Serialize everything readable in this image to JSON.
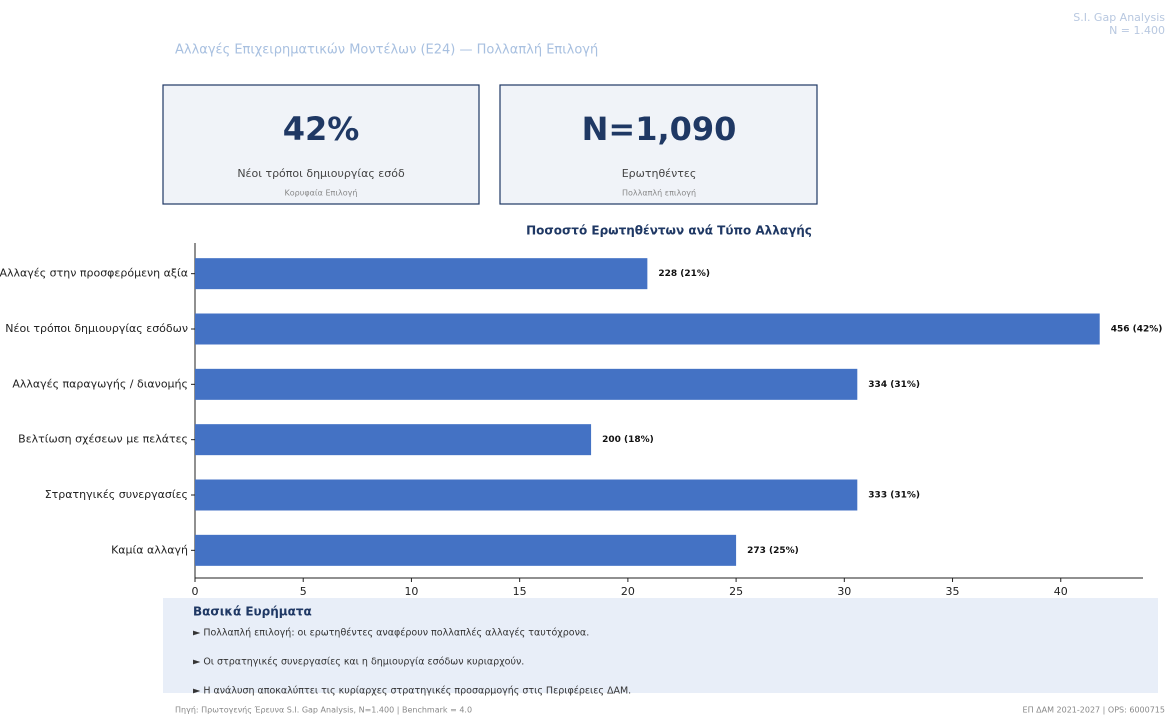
{
  "header": {
    "title": "Αλλαγές Επιχειρηματικών Μοντέλων (E24) — Πολλαπλή Επιλογή",
    "badge": [
      "S.I. Gap Analysis",
      "N = 1.400"
    ]
  },
  "kpis": [
    {
      "value": "42%",
      "label": "Νέοι τρόποι δημιουργίας εσόδ",
      "note": "Κορυφαία Επιλογή"
    },
    {
      "value": "N=1,090",
      "label": "Ερωτηθέντες",
      "note": "Πολλαπλή επιλογή"
    }
  ],
  "chart_data": {
    "type": "barh",
    "title": "Ποσοστό Ερωτηθέντων ανά Τύπο Αλλαγής",
    "categories": [
      "Αλλαγές στην προσφερόμενη αξία",
      "Νέοι τρόποι δημιουργίας εσόδων",
      "Αλλαγές παραγωγής / διανομής",
      "Βελτίωση σχέσεων με πελάτες",
      "Στρατηγικές συνεργασίες",
      "Καμία αλλαγή"
    ],
    "values": [
      20.9,
      41.8,
      30.6,
      18.3,
      30.6,
      25.0
    ],
    "value_labels": [
      "228 (21%)",
      "456 (42%)",
      "334 (31%)",
      "200 (18%)",
      "333 (31%)",
      "273 (25%)"
    ],
    "color": "#4472c4",
    "xlim": [
      0,
      43.8
    ],
    "xticks": [
      0,
      5,
      10,
      15,
      20,
      25,
      30,
      35,
      40
    ],
    "grid": false
  },
  "findings": {
    "title": "Βασικά Ευρήματα",
    "items": [
      "► Πολλαπλή επιλογή: οι ερωτηθέντες αναφέρουν πολλαπλές αλλαγές ταυτόχρονα.",
      "► Οι στρατηγικές συνεργασίες και η δημιουργία εσόδων κυριαρχούν.",
      "► Η ανάλυση αποκαλύπτει τις κυρίαρχες στρατηγικές προσαρμογής στις Περιφέρειες ΔΑΜ."
    ]
  },
  "footer": {
    "source": "Πηγή: Πρωτογενής Έρευνα S.I. Gap Analysis, N=1.400 | Benchmark = 4.0",
    "ref": "ΕΠ ΔΑΜ 2021-2027 | OPS: 6000715"
  }
}
